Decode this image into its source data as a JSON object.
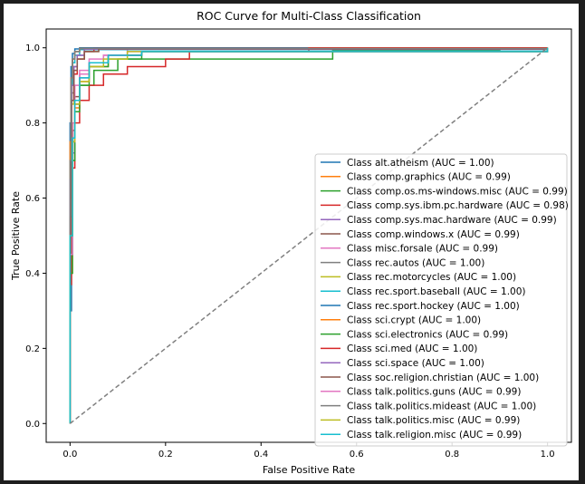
{
  "chart_data": {
    "type": "line",
    "title": "ROC Curve for Multi-Class Classification",
    "xlabel": "False Positive Rate",
    "ylabel": "True Positive Rate",
    "xlim": [
      -0.05,
      1.05
    ],
    "ylim": [
      -0.05,
      1.05
    ],
    "xticks": [
      "0.0",
      "0.2",
      "0.4",
      "0.6",
      "0.8",
      "1.0"
    ],
    "yticks": [
      "0.0",
      "0.2",
      "0.4",
      "0.6",
      "0.8",
      "1.0"
    ],
    "grid": false,
    "legend_position": "lower right",
    "reference_line": {
      "x": [
        0,
        1
      ],
      "y": [
        0,
        1
      ],
      "style": "dashed",
      "color": "#808080"
    },
    "series": [
      {
        "name": "Class alt.atheism (AUC = 1.00)",
        "color": "#1f77b4",
        "x": [
          0,
          0,
          0.003,
          0.005,
          0.01,
          0.02,
          1
        ],
        "y": [
          0,
          0.3,
          0.9,
          0.97,
          0.99,
          1.0,
          1.0
        ]
      },
      {
        "name": "Class comp.graphics (AUC = 0.99)",
        "color": "#ff7f0e",
        "x": [
          0,
          0,
          0.005,
          0.01,
          0.02,
          0.04,
          0.08,
          0.15,
          1
        ],
        "y": [
          0,
          0.4,
          0.7,
          0.84,
          0.91,
          0.95,
          0.98,
          0.99,
          1.0
        ]
      },
      {
        "name": "Class comp.os.ms-windows.misc (AUC = 0.99)",
        "color": "#2ca02c",
        "x": [
          0,
          0,
          0.005,
          0.01,
          0.02,
          0.05,
          0.1,
          0.55,
          0.9,
          1
        ],
        "y": [
          0,
          0.5,
          0.75,
          0.85,
          0.9,
          0.94,
          0.97,
          0.993,
          0.997,
          1.0
        ]
      },
      {
        "name": "Class comp.sys.ibm.pc.hardware (AUC = 0.98)",
        "color": "#d62728",
        "x": [
          0,
          0,
          0.003,
          0.005,
          0.01,
          0.02,
          0.04,
          0.07,
          0.12,
          0.2,
          0.25,
          0.5,
          1
        ],
        "y": [
          0,
          0.37,
          0.55,
          0.68,
          0.8,
          0.86,
          0.9,
          0.93,
          0.95,
          0.97,
          0.99,
          1.0,
          1.0
        ]
      },
      {
        "name": "Class comp.sys.mac.hardware (AUC = 0.99)",
        "color": "#9467bd",
        "x": [
          0,
          0,
          0.005,
          0.01,
          0.02,
          0.04,
          0.08,
          0.15,
          1
        ],
        "y": [
          0,
          0.45,
          0.72,
          0.85,
          0.92,
          0.96,
          0.98,
          0.99,
          1.0
        ]
      },
      {
        "name": "Class comp.windows.x (AUC = 0.99)",
        "color": "#8c564b",
        "x": [
          0,
          0,
          0.005,
          0.01,
          0.02,
          0.04,
          0.08,
          0.15,
          1
        ],
        "y": [
          0,
          0.5,
          0.78,
          0.87,
          0.93,
          0.96,
          0.98,
          0.99,
          1.0
        ]
      },
      {
        "name": "Class misc.forsale (AUC = 0.99)",
        "color": "#e377c2",
        "x": [
          0,
          0,
          0.005,
          0.01,
          0.02,
          0.04,
          0.07,
          0.12,
          1
        ],
        "y": [
          0,
          0.55,
          0.8,
          0.9,
          0.94,
          0.97,
          0.98,
          0.995,
          1.0
        ]
      },
      {
        "name": "Class rec.autos (AUC = 1.00)",
        "color": "#7f7f7f",
        "x": [
          0,
          0,
          0.003,
          0.008,
          0.015,
          0.03,
          1
        ],
        "y": [
          0,
          0.6,
          0.88,
          0.95,
          0.98,
          0.995,
          1.0
        ]
      },
      {
        "name": "Class rec.motorcycles (AUC = 1.00)",
        "color": "#bcbd22",
        "x": [
          0,
          0,
          0.003,
          0.008,
          0.015,
          0.03,
          0.06,
          1
        ],
        "y": [
          0,
          0.6,
          0.85,
          0.93,
          0.97,
          0.99,
          0.998,
          1.0
        ]
      },
      {
        "name": "Class rec.sport.baseball (AUC = 1.00)",
        "color": "#17becf",
        "x": [
          0,
          0,
          0.002,
          0.005,
          0.01,
          0.02,
          1
        ],
        "y": [
          0,
          0.7,
          0.9,
          0.96,
          0.98,
          0.995,
          1.0
        ]
      },
      {
        "name": "Class rec.sport.hockey (AUC = 1.00)",
        "color": "#1f77b4",
        "x": [
          0,
          0,
          0.002,
          0.005,
          0.01,
          1
        ],
        "y": [
          0,
          0.8,
          0.95,
          0.985,
          0.997,
          1.0
        ]
      },
      {
        "name": "Class sci.crypt (AUC = 1.00)",
        "color": "#ff7f0e",
        "x": [
          0,
          0,
          0.002,
          0.005,
          0.01,
          0.02,
          1
        ],
        "y": [
          0,
          0.75,
          0.92,
          0.97,
          0.99,
          0.998,
          1.0
        ]
      },
      {
        "name": "Class sci.electronics (AUC = 0.99)",
        "color": "#2ca02c",
        "x": [
          0,
          0,
          0.005,
          0.01,
          0.02,
          0.04,
          0.08,
          0.15,
          1
        ],
        "y": [
          0,
          0.4,
          0.7,
          0.83,
          0.9,
          0.95,
          0.97,
          0.99,
          1.0
        ]
      },
      {
        "name": "Class sci.med (AUC = 1.00)",
        "color": "#d62728",
        "x": [
          0,
          0,
          0.003,
          0.008,
          0.015,
          0.03,
          0.05,
          1
        ],
        "y": [
          0,
          0.6,
          0.86,
          0.93,
          0.97,
          0.99,
          0.998,
          1.0
        ]
      },
      {
        "name": "Class sci.space (AUC = 1.00)",
        "color": "#9467bd",
        "x": [
          0,
          0,
          0.003,
          0.008,
          0.015,
          0.03,
          1
        ],
        "y": [
          0,
          0.65,
          0.9,
          0.95,
          0.98,
          0.996,
          1.0
        ]
      },
      {
        "name": "Class soc.religion.christian (AUC = 1.00)",
        "color": "#8c564b",
        "x": [
          0,
          0,
          0.003,
          0.008,
          0.015,
          0.03,
          0.06,
          1
        ],
        "y": [
          0,
          0.55,
          0.86,
          0.94,
          0.97,
          0.99,
          0.997,
          1.0
        ]
      },
      {
        "name": "Class talk.politics.guns (AUC = 0.99)",
        "color": "#e377c2",
        "x": [
          0,
          0,
          0.005,
          0.01,
          0.02,
          0.04,
          0.07,
          0.12,
          1
        ],
        "y": [
          0,
          0.45,
          0.75,
          0.86,
          0.93,
          0.96,
          0.98,
          0.99,
          1.0
        ]
      },
      {
        "name": "Class talk.politics.mideast (AUC = 1.00)",
        "color": "#7f7f7f",
        "x": [
          0,
          0,
          0.002,
          0.005,
          0.01,
          0.02,
          1
        ],
        "y": [
          0,
          0.7,
          0.92,
          0.97,
          0.99,
          0.998,
          1.0
        ]
      },
      {
        "name": "Class talk.politics.misc (AUC = 0.99)",
        "color": "#bcbd22",
        "x": [
          0,
          0,
          0.005,
          0.01,
          0.02,
          0.04,
          0.07,
          0.12,
          1
        ],
        "y": [
          0,
          0.5,
          0.75,
          0.85,
          0.91,
          0.95,
          0.97,
          0.99,
          1.0
        ]
      },
      {
        "name": "Class talk.religion.misc (AUC = 0.99)",
        "color": "#17becf",
        "x": [
          0,
          0,
          0.005,
          0.01,
          0.02,
          0.04,
          0.08,
          0.15,
          1
        ],
        "y": [
          0,
          0.5,
          0.76,
          0.86,
          0.92,
          0.96,
          0.98,
          0.99,
          1.0
        ]
      }
    ]
  }
}
